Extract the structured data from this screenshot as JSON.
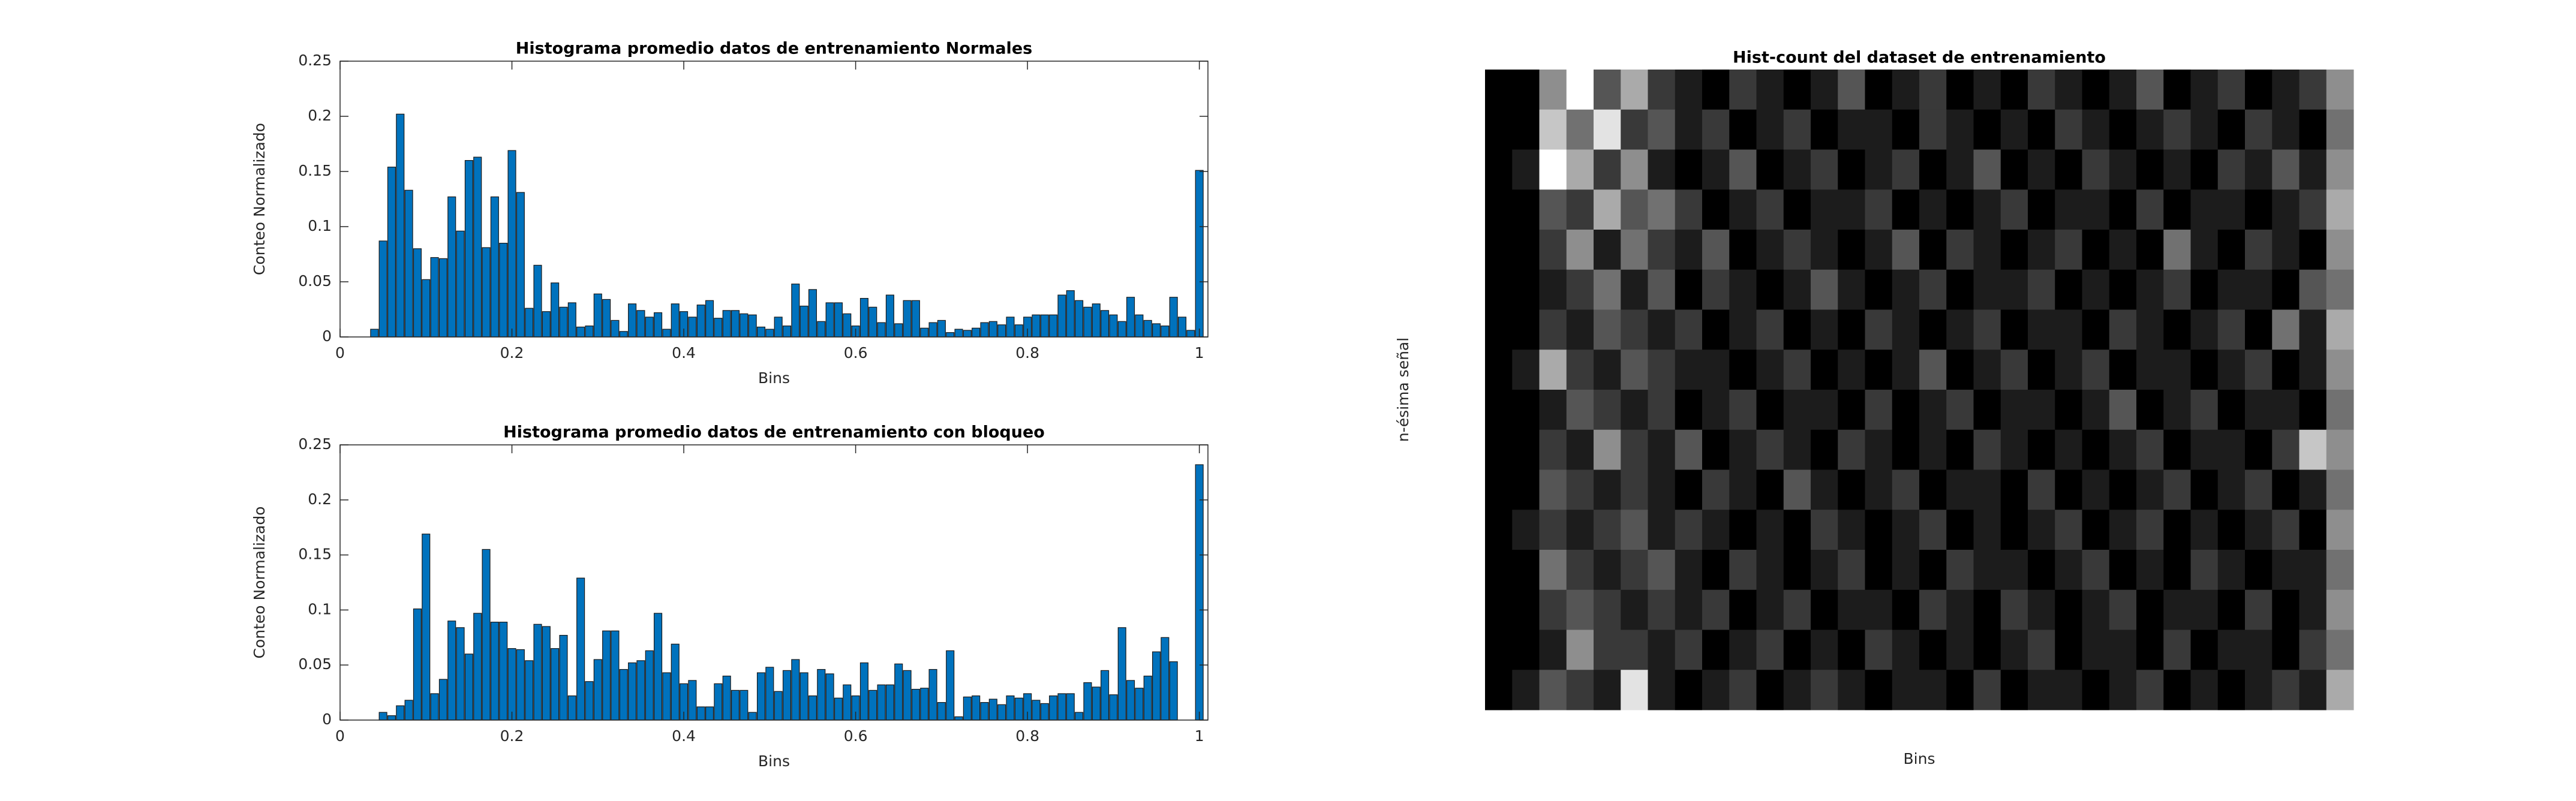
{
  "chart_data": [
    {
      "type": "bar",
      "title": "Histograma promedio datos de entrenamiento Normales",
      "xlabel": "Bins",
      "ylabel": "Conteo Normalizado",
      "color": "#0072bd",
      "x": [
        0,
        0.01,
        0.02,
        0.03,
        0.04,
        0.05,
        0.06,
        0.07,
        0.08,
        0.09,
        0.1,
        0.11,
        0.12,
        0.13,
        0.14,
        0.15,
        0.16,
        0.17,
        0.18,
        0.19,
        0.2,
        0.21,
        0.22,
        0.23,
        0.24,
        0.25,
        0.26,
        0.27,
        0.28,
        0.29,
        0.3,
        0.31,
        0.32,
        0.33,
        0.34,
        0.35,
        0.36,
        0.37,
        0.38,
        0.39,
        0.4,
        0.41,
        0.42,
        0.43,
        0.44,
        0.45,
        0.46,
        0.47,
        0.48,
        0.49,
        0.5,
        0.51,
        0.52,
        0.53,
        0.54,
        0.55,
        0.56,
        0.57,
        0.58,
        0.59,
        0.6,
        0.61,
        0.62,
        0.63,
        0.64,
        0.65,
        0.66,
        0.67,
        0.68,
        0.69,
        0.7,
        0.71,
        0.72,
        0.73,
        0.74,
        0.75,
        0.76,
        0.77,
        0.78,
        0.79,
        0.8,
        0.81,
        0.82,
        0.83,
        0.84,
        0.85,
        0.86,
        0.87,
        0.88,
        0.89,
        0.9,
        0.91,
        0.92,
        0.93,
        0.94,
        0.95,
        0.96,
        0.97,
        0.98,
        0.99,
        1
      ],
      "values": [
        0,
        0,
        0,
        0,
        0.007,
        0.087,
        0.154,
        0.202,
        0.133,
        0.08,
        0.052,
        0.072,
        0.071,
        0.127,
        0.096,
        0.16,
        0.163,
        0.081,
        0.127,
        0.085,
        0.169,
        0.131,
        0.026,
        0.065,
        0.023,
        0.049,
        0.027,
        0.031,
        0.009,
        0.01,
        0.039,
        0.034,
        0.015,
        0.005,
        0.03,
        0.024,
        0.018,
        0.022,
        0.007,
        0.03,
        0.023,
        0.018,
        0.029,
        0.033,
        0.017,
        0.024,
        0.024,
        0.021,
        0.02,
        0.009,
        0.007,
        0.018,
        0.01,
        0.048,
        0.028,
        0.043,
        0.014,
        0.031,
        0.031,
        0.021,
        0.01,
        0.035,
        0.027,
        0.013,
        0.038,
        0.012,
        0.033,
        0.033,
        0.008,
        0.013,
        0.015,
        0.004,
        0.007,
        0.006,
        0.008,
        0.013,
        0.014,
        0.011,
        0.018,
        0.011,
        0.018,
        0.02,
        0.02,
        0.02,
        0.038,
        0.042,
        0.033,
        0.027,
        0.03,
        0.024,
        0.02,
        0.014,
        0.036,
        0.02,
        0.015,
        0.012,
        0.01,
        0.036,
        0.018,
        0.006,
        0.151
      ],
      "xlim": [
        0,
        1.01
      ],
      "xticks": [
        0,
        0.2,
        0.4,
        0.6,
        0.8,
        1
      ],
      "ylim": [
        0,
        0.25
      ],
      "yticks": [
        0,
        0.05,
        0.1,
        0.15,
        0.2,
        0.25
      ]
    },
    {
      "type": "bar",
      "title": "Histograma promedio datos de entrenamiento con bloqueo",
      "xlabel": "Bins",
      "ylabel": "Conteo Normalizado",
      "color": "#0072bd",
      "x": [
        0,
        0.01,
        0.02,
        0.03,
        0.04,
        0.05,
        0.06,
        0.07,
        0.08,
        0.09,
        0.1,
        0.11,
        0.12,
        0.13,
        0.14,
        0.15,
        0.16,
        0.17,
        0.18,
        0.19,
        0.2,
        0.21,
        0.22,
        0.23,
        0.24,
        0.25,
        0.26,
        0.27,
        0.28,
        0.29,
        0.3,
        0.31,
        0.32,
        0.33,
        0.34,
        0.35,
        0.36,
        0.37,
        0.38,
        0.39,
        0.4,
        0.41,
        0.42,
        0.43,
        0.44,
        0.45,
        0.46,
        0.47,
        0.48,
        0.49,
        0.5,
        0.51,
        0.52,
        0.53,
        0.54,
        0.55,
        0.56,
        0.57,
        0.58,
        0.59,
        0.6,
        0.61,
        0.62,
        0.63,
        0.64,
        0.65,
        0.66,
        0.67,
        0.68,
        0.69,
        0.7,
        0.71,
        0.72,
        0.73,
        0.74,
        0.75,
        0.76,
        0.77,
        0.78,
        0.79,
        0.8,
        0.81,
        0.82,
        0.83,
        0.84,
        0.85,
        0.86,
        0.87,
        0.88,
        0.89,
        0.9,
        0.91,
        0.92,
        0.93,
        0.94,
        0.95,
        0.96,
        0.97,
        0.98,
        0.99,
        1
      ],
      "values": [
        0,
        0,
        0,
        0,
        0,
        0.007,
        0.004,
        0.013,
        0.018,
        0.101,
        0.169,
        0.024,
        0.037,
        0.09,
        0.084,
        0.06,
        0.097,
        0.155,
        0.089,
        0.089,
        0.065,
        0.064,
        0.054,
        0.087,
        0.085,
        0.065,
        0.077,
        0.022,
        0.129,
        0.035,
        0.055,
        0.081,
        0.081,
        0.046,
        0.052,
        0.054,
        0.063,
        0.097,
        0.043,
        0.069,
        0.033,
        0.036,
        0.012,
        0.012,
        0.033,
        0.04,
        0.027,
        0.027,
        0.007,
        0.043,
        0.048,
        0.026,
        0.045,
        0.055,
        0.043,
        0.022,
        0.046,
        0.042,
        0.02,
        0.032,
        0.022,
        0.052,
        0.027,
        0.032,
        0.032,
        0.051,
        0.045,
        0.028,
        0.029,
        0.046,
        0.016,
        0.063,
        0.003,
        0.021,
        0.022,
        0.016,
        0.019,
        0.014,
        0.022,
        0.02,
        0.024,
        0.018,
        0.015,
        0.022,
        0.024,
        0.024,
        0.007,
        0.034,
        0.03,
        0.045,
        0.023,
        0.084,
        0.036,
        0.029,
        0.04,
        0.062,
        0.075,
        0.053,
        0,
        0,
        0.232
      ],
      "xlim": [
        0,
        1.01
      ],
      "xticks": [
        0,
        0.2,
        0.4,
        0.6,
        0.8,
        1
      ],
      "ylim": [
        0,
        0.25
      ],
      "yticks": [
        0,
        0.05,
        0.1,
        0.15,
        0.2,
        0.25
      ]
    },
    {
      "type": "heatmap",
      "title": "Hist-count del dataset de entrenamiento",
      "xlabel": "Bins",
      "ylabel": "n-ésima señal",
      "colormap": "gray",
      "values": [
        [
          0,
          0,
          5,
          9,
          3,
          6,
          2,
          1,
          0,
          2,
          1,
          0,
          1,
          3,
          0,
          1,
          2,
          0,
          1,
          0,
          2,
          1,
          0,
          1,
          3,
          0,
          1,
          2,
          0,
          1,
          2,
          5
        ],
        [
          0,
          0,
          7,
          4,
          8,
          2,
          3,
          1,
          2,
          0,
          1,
          2,
          0,
          1,
          1,
          0,
          2,
          1,
          0,
          1,
          0,
          2,
          1,
          0,
          1,
          2,
          1,
          0,
          2,
          1,
          0,
          4
        ],
        [
          0,
          1,
          9,
          6,
          2,
          5,
          1,
          0,
          1,
          3,
          0,
          1,
          2,
          0,
          1,
          2,
          0,
          1,
          3,
          0,
          1,
          0,
          2,
          1,
          0,
          1,
          0,
          2,
          1,
          3,
          1,
          5
        ],
        [
          0,
          0,
          3,
          2,
          6,
          3,
          4,
          2,
          0,
          1,
          2,
          0,
          1,
          1,
          2,
          0,
          1,
          0,
          1,
          2,
          0,
          1,
          1,
          0,
          2,
          0,
          1,
          1,
          0,
          1,
          2,
          6
        ],
        [
          0,
          0,
          2,
          5,
          1,
          4,
          2,
          1,
          3,
          0,
          1,
          2,
          1,
          0,
          1,
          3,
          0,
          2,
          1,
          0,
          1,
          2,
          0,
          1,
          0,
          4,
          1,
          0,
          2,
          1,
          0,
          5
        ],
        [
          0,
          0,
          1,
          2,
          4,
          1,
          3,
          0,
          2,
          1,
          0,
          1,
          3,
          1,
          0,
          1,
          2,
          0,
          1,
          1,
          2,
          0,
          1,
          0,
          1,
          2,
          0,
          1,
          1,
          0,
          3,
          4
        ],
        [
          0,
          0,
          2,
          1,
          3,
          2,
          1,
          2,
          0,
          1,
          2,
          0,
          1,
          0,
          2,
          1,
          0,
          1,
          2,
          0,
          1,
          1,
          0,
          2,
          1,
          0,
          1,
          2,
          0,
          4,
          1,
          6
        ],
        [
          0,
          1,
          6,
          2,
          1,
          3,
          2,
          1,
          1,
          0,
          1,
          2,
          0,
          1,
          0,
          1,
          3,
          0,
          1,
          2,
          0,
          1,
          2,
          0,
          1,
          1,
          0,
          1,
          2,
          0,
          1,
          5
        ],
        [
          0,
          0,
          1,
          3,
          2,
          1,
          2,
          0,
          1,
          2,
          0,
          1,
          1,
          0,
          2,
          0,
          1,
          2,
          0,
          1,
          1,
          0,
          1,
          3,
          0,
          1,
          2,
          0,
          1,
          1,
          0,
          4
        ],
        [
          0,
          0,
          2,
          1,
          5,
          2,
          1,
          3,
          0,
          1,
          2,
          1,
          0,
          2,
          1,
          0,
          1,
          0,
          2,
          1,
          0,
          1,
          0,
          1,
          2,
          0,
          1,
          1,
          0,
          2,
          7,
          5
        ],
        [
          0,
          0,
          3,
          2,
          1,
          2,
          1,
          0,
          2,
          1,
          0,
          3,
          1,
          0,
          1,
          2,
          0,
          1,
          1,
          0,
          2,
          0,
          1,
          0,
          1,
          2,
          0,
          1,
          2,
          0,
          1,
          4
        ],
        [
          0,
          1,
          2,
          1,
          2,
          3,
          1,
          2,
          1,
          0,
          1,
          0,
          2,
          1,
          0,
          1,
          2,
          0,
          1,
          0,
          1,
          2,
          0,
          1,
          2,
          0,
          1,
          0,
          1,
          2,
          0,
          5
        ],
        [
          0,
          0,
          4,
          2,
          1,
          2,
          3,
          1,
          0,
          2,
          1,
          0,
          1,
          2,
          0,
          1,
          0,
          2,
          1,
          1,
          0,
          1,
          2,
          0,
          1,
          0,
          2,
          1,
          0,
          1,
          1,
          4
        ],
        [
          0,
          0,
          2,
          3,
          2,
          1,
          2,
          1,
          2,
          0,
          1,
          2,
          0,
          1,
          1,
          0,
          2,
          1,
          0,
          2,
          1,
          0,
          1,
          2,
          0,
          1,
          1,
          0,
          2,
          0,
          1,
          5
        ],
        [
          0,
          0,
          1,
          5,
          2,
          2,
          1,
          2,
          0,
          1,
          2,
          0,
          1,
          0,
          2,
          1,
          0,
          1,
          0,
          1,
          2,
          0,
          1,
          1,
          0,
          2,
          0,
          1,
          1,
          0,
          2,
          4
        ],
        [
          0,
          1,
          3,
          2,
          1,
          8,
          1,
          0,
          1,
          2,
          0,
          1,
          2,
          1,
          0,
          1,
          1,
          0,
          2,
          0,
          1,
          1,
          0,
          1,
          2,
          0,
          1,
          0,
          1,
          2,
          1,
          6
        ]
      ]
    }
  ]
}
